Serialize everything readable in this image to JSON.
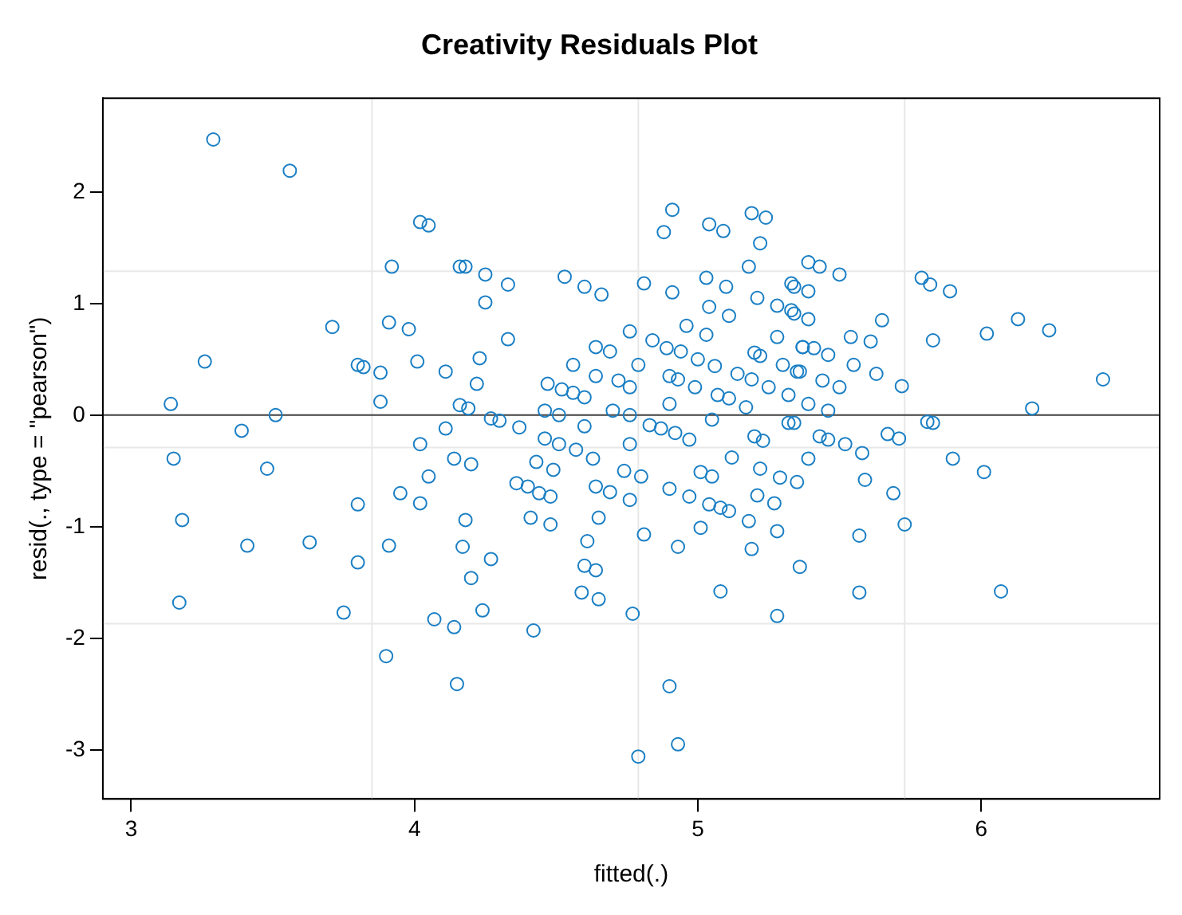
{
  "chart_data": {
    "type": "scatter",
    "title": "Creativity Residuals Plot",
    "xlabel": "fitted(.)",
    "ylabel": "resid(., type = \"pearson\")",
    "xlim": [
      2.9,
      6.63
    ],
    "ylim": [
      -3.44,
      2.84
    ],
    "xticks": [
      3,
      4,
      5,
      6
    ],
    "yticks": [
      -3,
      -2,
      -1,
      0,
      1,
      2
    ],
    "grid": false,
    "legend": false,
    "marker": "circle",
    "ref_lines": [
      {
        "axis": "x",
        "value": 3.85,
        "color": "#e8e8e8"
      },
      {
        "axis": "x",
        "value": 4.79,
        "color": "#e8e8e8"
      },
      {
        "axis": "x",
        "value": 5.73,
        "color": "#e8e8e8"
      },
      {
        "axis": "y",
        "value": 1.29,
        "color": "#e8e8e8"
      },
      {
        "axis": "y",
        "value": -0.29,
        "color": "#e8e8e8"
      },
      {
        "axis": "y",
        "value": -1.87,
        "color": "#e8e8e8"
      },
      {
        "axis": "y",
        "value": 0,
        "color": "#404040"
      }
    ],
    "series": [
      {
        "color": "#1a7fc4",
        "x": [
          3.29,
          3.56,
          4.02,
          4.05,
          3.92,
          4.16,
          3.71,
          3.91,
          3.98,
          3.26,
          3.8,
          3.82,
          3.88,
          4.01,
          4.11,
          3.14,
          3.88,
          4.16,
          3.51,
          3.39,
          4.11,
          4.02,
          3.15,
          3.18,
          3.17,
          3.48,
          3.41,
          3.63,
          3.8,
          3.8,
          3.75,
          3.91,
          3.95,
          4.02,
          4.05,
          4.07,
          4.14,
          3.9,
          4.15,
          4.14,
          4.18,
          4.25,
          4.25,
          4.33,
          4.33,
          4.23,
          4.22,
          4.19,
          4.27,
          4.3,
          4.37,
          4.53,
          4.6,
          4.66,
          4.56,
          4.47,
          4.52,
          4.56,
          4.6,
          4.64,
          4.64,
          4.69,
          4.72,
          4.76,
          4.79,
          4.76,
          4.7,
          4.46,
          4.51,
          4.6,
          4.46,
          4.51,
          4.76,
          4.76,
          4.83,
          4.87,
          4.92,
          4.97,
          4.91,
          4.88,
          5.04,
          5.09,
          5.19,
          5.24,
          5.22,
          5.18,
          4.81,
          4.91,
          5.03,
          5.1,
          5.21,
          5.28,
          5.33,
          5.04,
          5.11,
          4.96,
          5.03,
          4.84,
          4.89,
          4.94,
          5.0,
          5.06,
          4.9,
          4.93,
          4.99,
          5.14,
          5.19,
          5.25,
          5.28,
          5.2,
          5.22,
          5.3,
          5.36,
          5.33,
          5.37,
          4.9,
          5.07,
          5.11,
          5.17,
          5.32,
          5.05,
          5.2,
          5.23,
          5.32,
          5.39,
          5.43,
          5.5,
          5.34,
          5.39,
          5.34,
          5.39,
          5.37,
          5.41,
          5.46,
          5.54,
          5.61,
          5.65,
          5.55,
          5.44,
          5.5,
          5.63,
          5.72,
          5.35,
          5.39,
          5.46,
          5.79,
          5.82,
          5.89,
          5.83,
          6.02,
          6.13,
          6.24,
          6.43,
          6.18,
          5.81,
          5.83,
          5.34,
          5.43,
          5.46,
          5.52,
          5.67,
          5.71,
          4.2,
          4.36,
          4.4,
          4.44,
          4.48,
          4.43,
          4.49,
          4.57,
          4.63,
          4.18,
          4.17,
          4.27,
          4.2,
          4.24,
          4.42,
          4.41,
          4.48,
          4.64,
          4.69,
          4.76,
          4.74,
          4.8,
          4.65,
          4.61,
          4.6,
          4.64,
          4.59,
          4.65,
          4.81,
          4.77,
          4.9,
          4.97,
          5.01,
          5.05,
          5.04,
          5.08,
          5.11,
          5.01,
          4.93,
          5.08,
          4.9,
          4.93,
          4.79,
          5.12,
          5.22,
          5.29,
          5.35,
          5.21,
          5.27,
          5.18,
          5.28,
          5.19,
          5.36,
          5.28,
          5.39,
          5.59,
          5.69,
          5.73,
          5.57,
          5.57,
          6.07,
          5.9,
          6.01,
          5.58
        ],
        "values": [
          2.47,
          2.19,
          1.73,
          1.7,
          1.33,
          1.33,
          0.79,
          0.83,
          0.77,
          0.48,
          0.45,
          0.43,
          0.38,
          0.48,
          0.39,
          0.1,
          0.12,
          0.09,
          0.0,
          -0.14,
          -0.12,
          -0.26,
          -0.39,
          -0.94,
          -1.68,
          -0.48,
          -1.17,
          -1.14,
          -0.8,
          -1.32,
          -1.77,
          -1.17,
          -0.7,
          -0.79,
          -0.55,
          -1.83,
          -1.9,
          -2.16,
          -2.41,
          -0.39,
          1.33,
          1.26,
          1.01,
          1.17,
          0.68,
          0.51,
          0.28,
          0.06,
          -0.03,
          -0.05,
          -0.11,
          1.24,
          1.15,
          1.08,
          0.45,
          0.28,
          0.23,
          0.2,
          0.16,
          0.35,
          0.61,
          0.57,
          0.31,
          0.75,
          0.45,
          0.25,
          0.04,
          0.04,
          0.0,
          -0.1,
          -0.21,
          -0.26,
          0.0,
          -0.26,
          -0.09,
          -0.12,
          -0.16,
          -0.22,
          1.84,
          1.64,
          1.71,
          1.65,
          1.81,
          1.77,
          1.54,
          1.33,
          1.18,
          1.1,
          1.23,
          1.15,
          1.05,
          0.98,
          1.18,
          0.97,
          0.89,
          0.8,
          0.72,
          0.67,
          0.6,
          0.57,
          0.5,
          0.44,
          0.35,
          0.32,
          0.25,
          0.37,
          0.32,
          0.25,
          0.7,
          0.56,
          0.53,
          0.45,
          0.39,
          0.94,
          0.61,
          0.1,
          0.18,
          0.15,
          0.07,
          0.18,
          -0.04,
          -0.19,
          -0.23,
          -0.07,
          1.37,
          1.33,
          1.26,
          1.15,
          1.11,
          0.91,
          0.86,
          0.61,
          0.6,
          0.54,
          0.7,
          0.66,
          0.85,
          0.45,
          0.31,
          0.25,
          0.37,
          0.26,
          0.39,
          0.1,
          0.04,
          1.23,
          1.17,
          1.11,
          0.67,
          0.73,
          0.86,
          0.76,
          0.32,
          0.06,
          -0.06,
          -0.07,
          -0.07,
          -0.19,
          -0.22,
          -0.26,
          -0.17,
          -0.21,
          -0.44,
          -0.61,
          -0.64,
          -0.7,
          -0.73,
          -0.42,
          -0.49,
          -0.31,
          -0.39,
          -0.94,
          -1.18,
          -1.29,
          -1.46,
          -1.75,
          -1.93,
          -0.92,
          -0.98,
          -0.64,
          -0.69,
          -0.76,
          -0.5,
          -0.55,
          -0.92,
          -1.13,
          -1.35,
          -1.39,
          -1.59,
          -1.65,
          -1.07,
          -1.78,
          -0.66,
          -0.73,
          -0.51,
          -0.55,
          -0.8,
          -0.83,
          -0.86,
          -1.01,
          -1.18,
          -1.58,
          -2.43,
          -2.95,
          -3.06,
          -0.38,
          -0.48,
          -0.56,
          -0.6,
          -0.72,
          -0.79,
          -0.95,
          -1.04,
          -1.2,
          -1.36,
          -1.8,
          -0.39,
          -0.58,
          -0.7,
          -0.98,
          -1.08,
          -1.59,
          -1.58,
          -0.39,
          -0.51,
          -0.34
        ]
      }
    ]
  }
}
